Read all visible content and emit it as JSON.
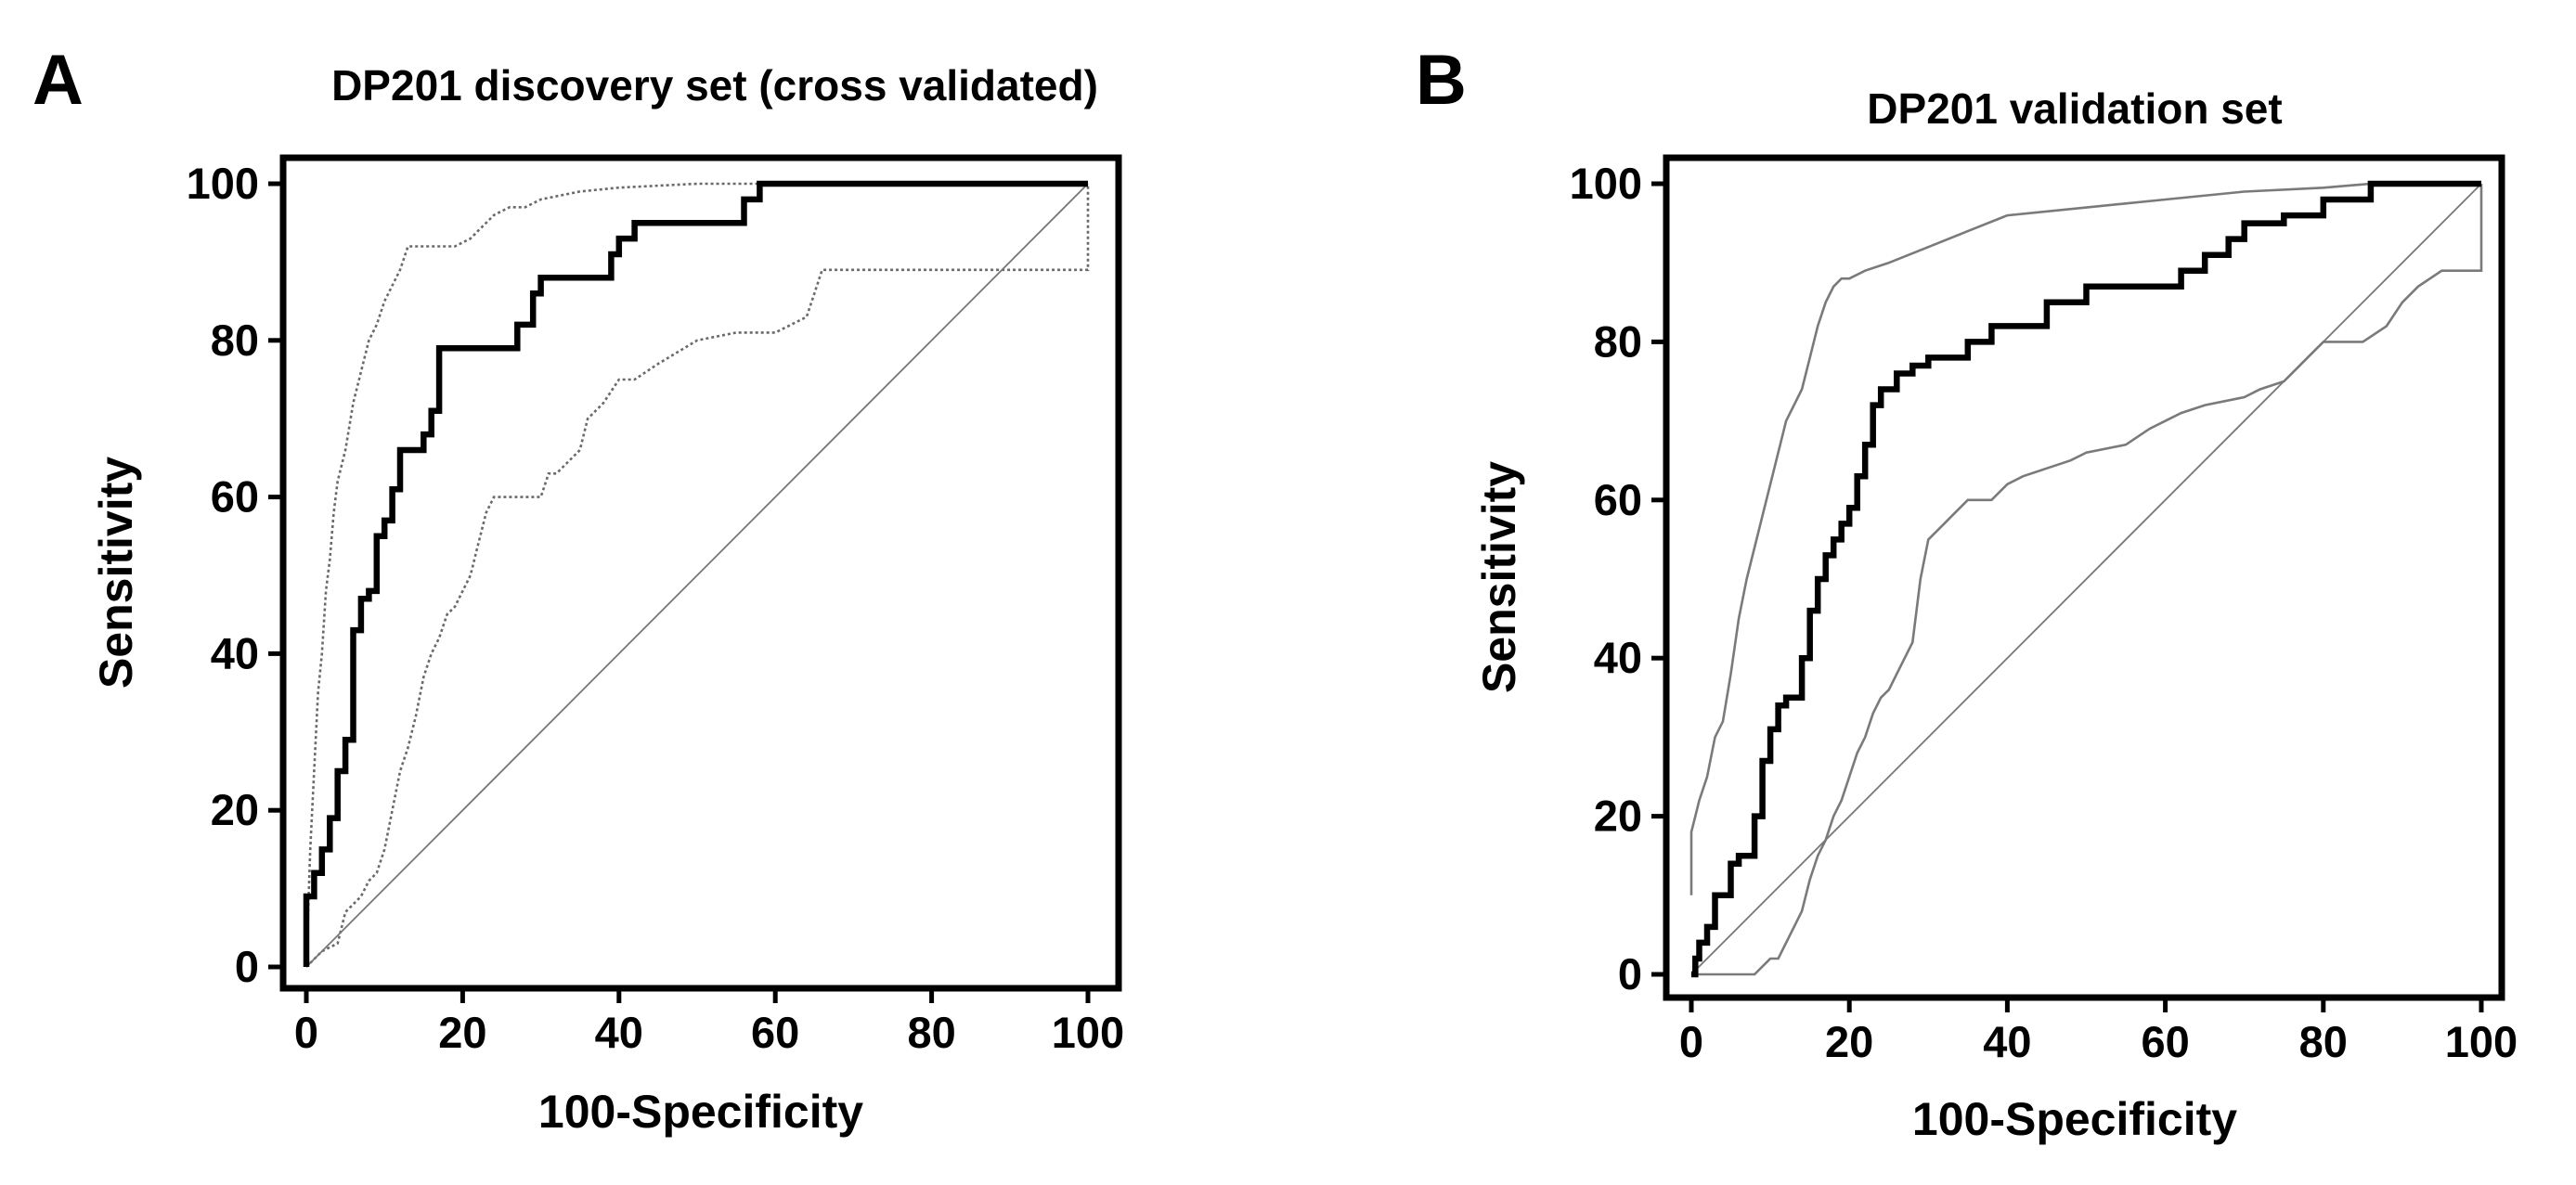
{
  "chart_data": [
    {
      "panel_label": "A",
      "type": "line",
      "title": "DP201 discovery set (cross validated)",
      "xlabel": "100-Specificity",
      "ylabel": "Sensitivity",
      "xlim": [
        0,
        100
      ],
      "ylim": [
        0,
        100
      ],
      "xticks": [
        "0",
        "20",
        "40",
        "60",
        "80",
        "100"
      ],
      "yticks": [
        "0",
        "20",
        "40",
        "60",
        "80",
        "100"
      ],
      "grid": false,
      "series": [
        {
          "name": "ROC curve",
          "style": "solid-thick",
          "x": [
            0,
            0,
            1,
            1,
            2,
            2,
            3,
            3,
            4,
            4,
            5,
            5,
            6,
            6,
            6,
            7,
            7,
            8,
            8,
            9,
            9,
            10,
            10,
            11,
            11,
            12,
            12,
            13,
            13,
            15,
            15,
            16,
            16,
            17,
            17,
            27,
            27,
            29,
            29,
            30,
            30,
            39,
            39,
            40,
            40,
            42,
            42,
            56,
            56,
            58,
            58,
            100
          ],
          "y": [
            0,
            9,
            9,
            12,
            12,
            15,
            15,
            19,
            19,
            25,
            25,
            29,
            29,
            35,
            43,
            43,
            47,
            47,
            48,
            48,
            55,
            55,
            57,
            57,
            61,
            61,
            66,
            66,
            66,
            66,
            68,
            68,
            71,
            71,
            79,
            79,
            82,
            82,
            86,
            86,
            88,
            88,
            91,
            91,
            93,
            93,
            95,
            95,
            98,
            98,
            100,
            100
          ]
        },
        {
          "name": "95% CI upper bound",
          "style": "dotted-thin",
          "x": [
            0,
            0.5,
            1,
            1.5,
            2,
            2.5,
            3,
            3.5,
            4,
            5,
            6,
            7,
            8,
            9,
            10,
            11,
            12,
            13,
            14,
            15,
            17,
            19,
            21,
            22,
            23,
            24,
            26,
            28,
            30,
            35,
            40,
            50,
            60,
            100
          ],
          "y": [
            0,
            15,
            25,
            35,
            40,
            48,
            52,
            58,
            62,
            66,
            72,
            76,
            80,
            82,
            85,
            87,
            89,
            92,
            92,
            92,
            92,
            92,
            93,
            94,
            95,
            96,
            97,
            97,
            98,
            99,
            99.5,
            100,
            100,
            100
          ]
        },
        {
          "name": "95% CI lower bound",
          "style": "dotted-thin",
          "x": [
            0,
            1,
            2,
            4,
            5,
            6,
            7,
            8,
            9,
            10,
            11,
            12,
            13,
            14,
            15,
            16,
            17,
            18,
            19,
            20,
            21,
            22,
            23,
            24,
            25,
            30,
            31,
            32,
            35,
            36,
            38,
            40,
            42,
            45,
            50,
            55,
            60,
            64,
            65,
            66,
            100,
            100
          ],
          "y": [
            0,
            1,
            2,
            3,
            7,
            8,
            9,
            11,
            12,
            15,
            20,
            25,
            28,
            32,
            37,
            40,
            42,
            45,
            46,
            48,
            50,
            54,
            58,
            60,
            60,
            60,
            63,
            63,
            66,
            70,
            72,
            75,
            75,
            77,
            80,
            81,
            81,
            83,
            86,
            89,
            89,
            100
          ]
        },
        {
          "name": "Reference line",
          "style": "diagonal-thin",
          "x": [
            0,
            100
          ],
          "y": [
            0,
            100
          ]
        }
      ]
    },
    {
      "panel_label": "B",
      "type": "line",
      "title": "DP201 validation set",
      "xlabel": "100-Specificity",
      "ylabel": "Sensitivity",
      "xlim": [
        0,
        100
      ],
      "ylim": [
        0,
        100
      ],
      "xticks": [
        "0",
        "20",
        "40",
        "60",
        "80",
        "100"
      ],
      "yticks": [
        "0",
        "20",
        "40",
        "60",
        "80",
        "100"
      ],
      "grid": false,
      "series": [
        {
          "name": "ROC curve",
          "style": "solid-thick",
          "x": [
            0,
            0.5,
            0.5,
            1,
            1,
            2,
            2,
            3,
            3,
            5,
            5,
            6,
            6,
            8,
            8,
            9,
            9,
            10,
            10,
            11,
            11,
            12,
            12,
            14,
            14,
            15,
            15,
            16,
            16,
            17,
            17,
            18,
            18,
            19,
            19,
            20,
            20,
            21,
            21,
            22,
            22,
            23,
            23,
            24,
            24,
            26,
            26,
            28,
            28,
            30,
            30,
            35,
            35,
            38,
            38,
            45,
            45,
            50,
            50,
            62,
            62,
            65,
            65,
            68,
            68,
            70,
            70,
            75,
            75,
            80,
            80,
            86,
            86,
            100
          ],
          "y": [
            0,
            0,
            2,
            2,
            4,
            4,
            6,
            6,
            10,
            10,
            14,
            14,
            15,
            15,
            20,
            20,
            27,
            27,
            31,
            31,
            34,
            34,
            35,
            35,
            40,
            40,
            46,
            46,
            50,
            50,
            53,
            53,
            55,
            55,
            57,
            57,
            59,
            59,
            63,
            63,
            67,
            67,
            72,
            72,
            74,
            74,
            76,
            76,
            77,
            77,
            78,
            78,
            80,
            80,
            82,
            82,
            85,
            85,
            87,
            87,
            89,
            89,
            91,
            91,
            93,
            93,
            95,
            95,
            96,
            96,
            98,
            98,
            100,
            100
          ]
        },
        {
          "name": "95% CI upper bound",
          "style": "solid-thin-gray",
          "x": [
            0,
            0,
            0.5,
            1,
            2,
            3,
            4,
            5,
            6,
            7,
            8,
            9,
            10,
            11,
            12,
            13,
            14,
            15,
            16,
            17,
            18,
            19,
            20,
            22,
            25,
            30,
            35,
            40,
            50,
            60,
            70,
            80,
            86,
            100
          ],
          "y": [
            10,
            18,
            20,
            22,
            25,
            30,
            32,
            38,
            45,
            50,
            54,
            58,
            62,
            66,
            70,
            72,
            74,
            78,
            82,
            85,
            87,
            88,
            88,
            89,
            90,
            92,
            94,
            96,
            97,
            98,
            99,
            99.5,
            100,
            100
          ]
        },
        {
          "name": "95% CI lower bound",
          "style": "solid-thin-gray",
          "x": [
            0,
            5,
            8,
            10,
            11,
            12,
            13,
            14,
            15,
            16,
            17,
            18,
            19,
            20,
            21,
            22,
            23,
            24,
            25,
            26,
            27,
            28,
            29,
            30,
            31,
            32,
            33,
            35,
            38,
            40,
            42,
            45,
            48,
            50,
            55,
            58,
            60,
            62,
            65,
            70,
            72,
            75,
            78,
            80,
            85,
            88,
            90,
            92,
            95,
            100,
            100
          ],
          "y": [
            0,
            0,
            0,
            2,
            2,
            4,
            6,
            8,
            12,
            15,
            17,
            20,
            22,
            25,
            28,
            30,
            33,
            35,
            36,
            38,
            40,
            42,
            50,
            55,
            56,
            57,
            58,
            60,
            60,
            62,
            63,
            64,
            65,
            66,
            67,
            69,
            70,
            71,
            72,
            73,
            74,
            75,
            78,
            80,
            80,
            82,
            85,
            87,
            89,
            89,
            100
          ]
        },
        {
          "name": "Reference line",
          "style": "diagonal-thin",
          "x": [
            0,
            100
          ],
          "y": [
            0,
            100
          ]
        }
      ]
    }
  ]
}
